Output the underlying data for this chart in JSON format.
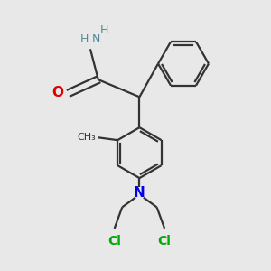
{
  "background_color": "#e8e8e8",
  "bond_color": "#333333",
  "N_color": "#0000ee",
  "O_color": "#dd0000",
  "Cl_color": "#00aa00",
  "NH_color": "#558899",
  "figsize": [
    3.0,
    3.0
  ],
  "dpi": 100,
  "xlim": [
    0,
    10
  ],
  "ylim": [
    0,
    10
  ]
}
